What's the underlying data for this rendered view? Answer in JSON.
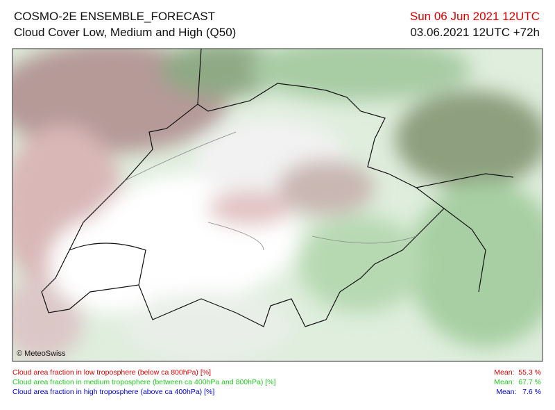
{
  "header": {
    "title": "COSMO-2E ENSEMBLE_FORECAST",
    "subtitle": "Cloud Cover Low, Medium and High (Q50)",
    "valid_time": "Sun 06 Jun 2021 12UTC",
    "run_time": "03.06.2021 12UTC +72h"
  },
  "map": {
    "credit": "© MeteoSwiss"
  },
  "legend": {
    "items": [
      {
        "label": "Cloud area fraction in low troposphere (below ca 800hPa) [%]",
        "mean": "Mean:  55.3 %",
        "color": "#e00000"
      },
      {
        "label": "Cloud area fraction in medium troposphere (between ca 400hPa and 800hPa) [%]",
        "mean": "Mean:  67.7 %",
        "color": "#22cc22"
      },
      {
        "label": "Cloud area fraction in high troposphere (above ca 400hPa) [%]",
        "mean": "Mean:   7.6 %",
        "color": "#0000dd"
      }
    ]
  }
}
